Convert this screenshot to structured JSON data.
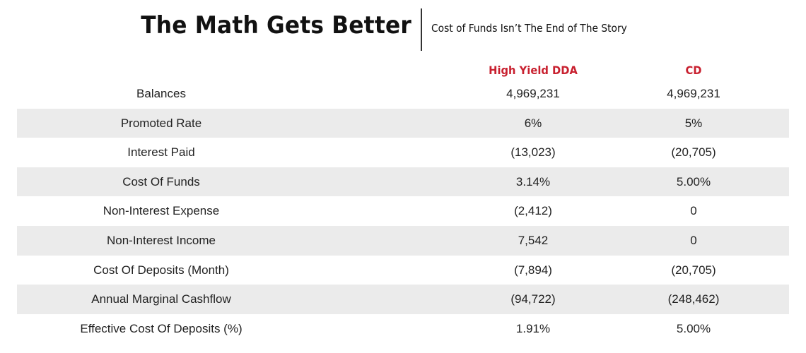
{
  "header": {
    "title": "The Math Gets Better",
    "subtitle": "Cost of Funds Isn’t The End of The Story"
  },
  "columns": {
    "col1": "High Yield DDA",
    "col2": "CD"
  },
  "colors": {
    "accent": "#c8202f",
    "shade": "#ebebeb"
  },
  "rows": [
    {
      "label": "Balances",
      "v1": "4,969,231",
      "v2": "4,969,231"
    },
    {
      "label": "Promoted Rate",
      "v1": "6%",
      "v2": "5%"
    },
    {
      "label": "Interest Paid",
      "v1": "(13,023)",
      "v2": "(20,705)"
    },
    {
      "label": "Cost Of Funds",
      "v1": "3.14%",
      "v2": "5.00%"
    },
    {
      "label": "Non-Interest Expense",
      "v1": "(2,412)",
      "v2": "0"
    },
    {
      "label": "Non-Interest Income",
      "v1": "7,542",
      "v2": "0"
    },
    {
      "label": "Cost Of Deposits (Month)",
      "v1": "(7,894)",
      "v2": "(20,705)"
    },
    {
      "label": "Annual Marginal Cashflow",
      "v1": "(94,722)",
      "v2": "(248,462)"
    },
    {
      "label": "Effective Cost Of Deposits (%)",
      "v1": "1.91%",
      "v2": "5.00%"
    }
  ]
}
